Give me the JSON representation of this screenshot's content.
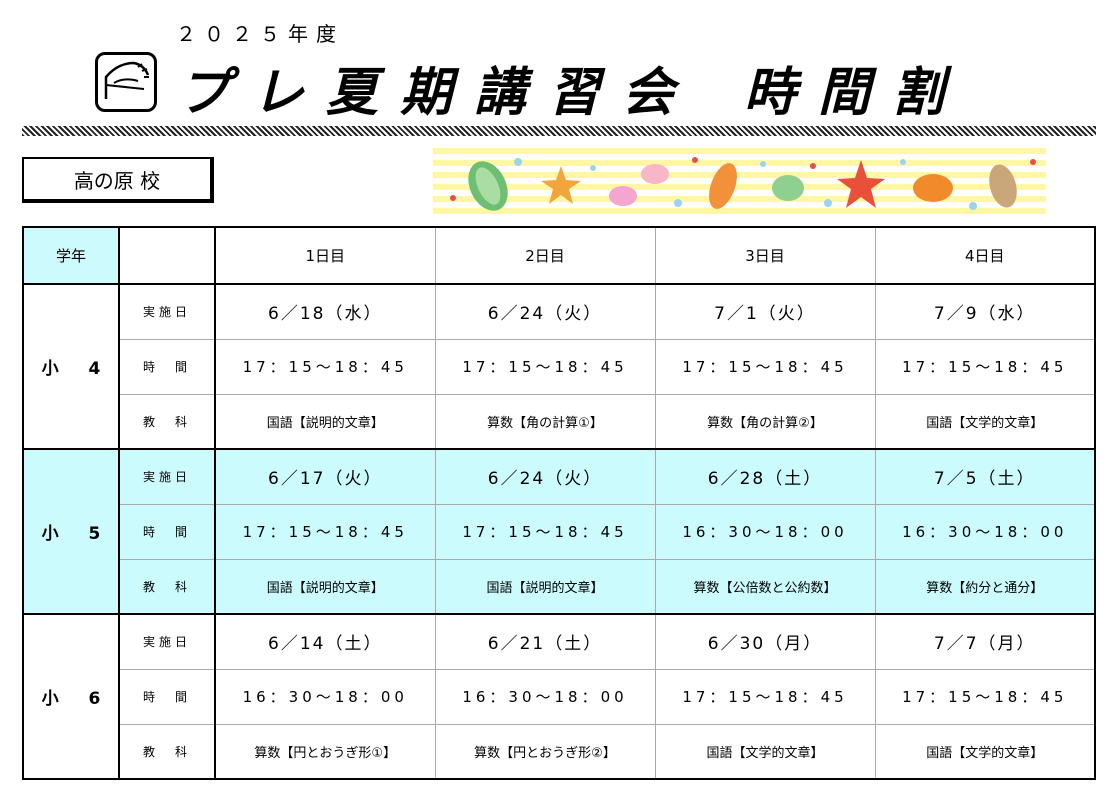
{
  "header": {
    "year": "２０２５年度",
    "title_part1": "プレ夏期講習会",
    "title_part2": "時間割"
  },
  "school": {
    "name": "高の原 校"
  },
  "table": {
    "grade_header": "学年",
    "day_headers": [
      "1日目",
      "2日目",
      "3日目",
      "4日目"
    ],
    "row_labels": {
      "date": "実施日",
      "time": "時　間",
      "subject": "教　科"
    },
    "grades": [
      {
        "name": "小 4",
        "dates": [
          "6／18（水）",
          "6／24（火）",
          "7／1（火）",
          "7／9（水）"
        ],
        "times": [
          "17：15～18：45",
          "17：15～18：45",
          "17：15～18：45",
          "17：15～18：45"
        ],
        "subjects": [
          "国語【説明的文章】",
          "算数【角の計算①】",
          "算数【角の計算②】",
          "国語【文学的文章】"
        ]
      },
      {
        "name": "小 5",
        "dates": [
          "6／17（火）",
          "6／24（火）",
          "6／28（土）",
          "7／5（土）"
        ],
        "times": [
          "17：15～18：45",
          "17：15～18：45",
          "16：30～18：00",
          "16：30～18：00"
        ],
        "subjects": [
          "国語【説明的文章】",
          "国語【説明的文章】",
          "算数【公倍数と公約数】",
          "算数【約分と通分】"
        ]
      },
      {
        "name": "小 6",
        "dates": [
          "6／14（土）",
          "6／21（土）",
          "6／30（月）",
          "7／7（月）"
        ],
        "times": [
          "16：30～18：00",
          "16：30～18：00",
          "17：15～18：45",
          "17：15～18：45"
        ],
        "subjects": [
          "算数【円とおうぎ形①】",
          "算数【円とおうぎ形②】",
          "国語【文学的文章】",
          "国語【文学的文章】"
        ]
      }
    ]
  },
  "colors": {
    "highlight": "#ccfbfe",
    "banner_stripe": "#fff6a8"
  },
  "icons": [
    "horse-logo-icon",
    "seashell-icon",
    "starfish-icon"
  ]
}
